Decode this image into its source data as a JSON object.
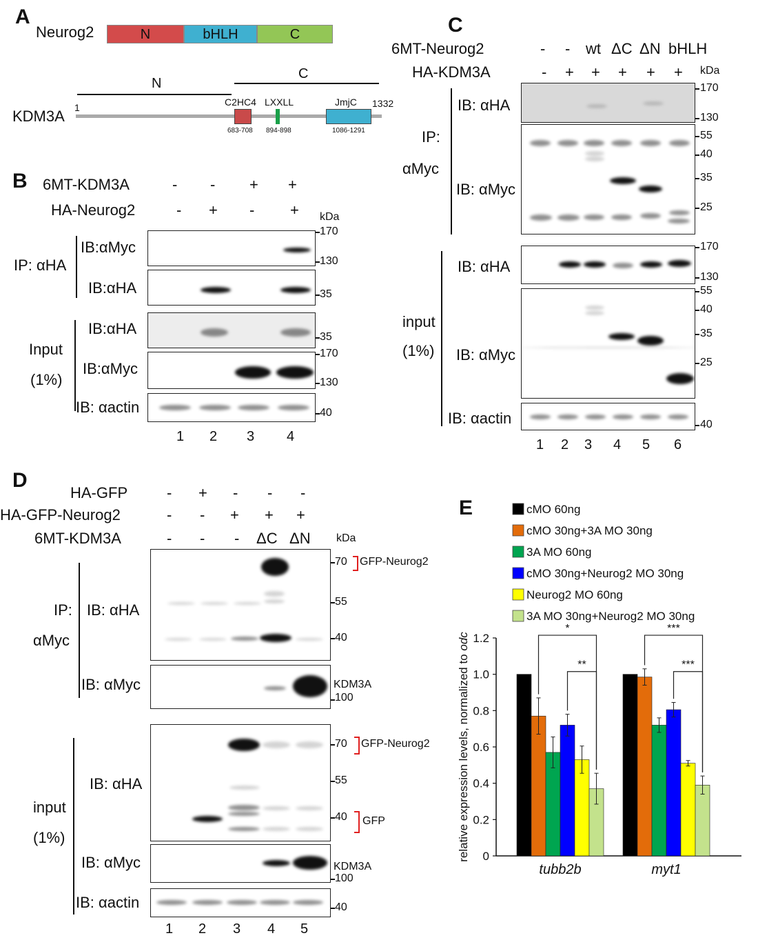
{
  "panels": {
    "A": "A",
    "B": "B",
    "C": "C",
    "D": "D",
    "E": "E"
  },
  "panelA": {
    "neurog2_name": "Neurog2",
    "neurog2_domains": [
      "N",
      "bHLH",
      "C"
    ],
    "kdm3a_name": "KDM3A",
    "start": "1",
    "end": "1332",
    "region_N": "N",
    "region_C": "C",
    "motifs": [
      {
        "name": "C2HC4",
        "range": "683-708"
      },
      {
        "name": "LXXLL",
        "range": "894-898"
      },
      {
        "name": "JmjC",
        "range": "1086-1291"
      }
    ]
  },
  "panelB": {
    "row1_label": "6MT-KDM3A",
    "row1_values": [
      "-",
      "-",
      "+",
      "+"
    ],
    "row2_label": "HA-Neurog2",
    "row2_values": [
      "-",
      "+",
      "-",
      "+"
    ],
    "kda": "kDa",
    "ip_label": "IP: αHA",
    "input_label1": "Input",
    "input_label2": "(1%)",
    "ib": [
      "IB:αMyc",
      "IB:αHA",
      "IB:αHA",
      "IB:αMyc",
      "IB: αactin"
    ],
    "markers": [
      "170",
      "130",
      "35",
      "35",
      "170",
      "130",
      "40"
    ],
    "lanes": [
      "1",
      "2",
      "3",
      "4"
    ]
  },
  "panelC": {
    "row1_label": "6MT-Neurog2",
    "row1_values": [
      "-",
      "-",
      "wt",
      "ΔC",
      "ΔN",
      "bHLH"
    ],
    "row2_label": "HA-KDM3A",
    "row2_values": [
      "-",
      "+",
      "+",
      "+",
      "+",
      "+"
    ],
    "kda": "kDa",
    "ip_label1": "IP:",
    "ip_label2": "αMyc",
    "input_label1": "input",
    "input_label2": "(1%)",
    "ib": [
      "IB: αHA",
      "IB: αMyc",
      "IB: αHA",
      "IB: αMyc",
      "IB: αactin"
    ],
    "markers_top": [
      "170",
      "130"
    ],
    "markers_myc": [
      "55",
      "40",
      "35",
      "25"
    ],
    "markers_input_ha": [
      "170",
      "130"
    ],
    "markers_input_myc": [
      "55",
      "40",
      "35",
      "25"
    ],
    "marker_actin": "40",
    "lanes": [
      "1",
      "2",
      "3",
      "4",
      "5",
      "6"
    ]
  },
  "panelD": {
    "row1_label": "HA-GFP",
    "row1_values": [
      "-",
      "+",
      "-",
      "-",
      "-"
    ],
    "row2_label": "HA-GFP-Neurog2",
    "row2_values": [
      "-",
      "-",
      "+",
      "+",
      "+"
    ],
    "row3_label": "6MT-KDM3A",
    "row3_values": [
      "-",
      "-",
      "-",
      "ΔC",
      "ΔN"
    ],
    "kda": "kDa",
    "ip_label1": "IP:",
    "ip_label2": "αMyc",
    "input_label1": "input",
    "input_label2": "(1%)",
    "ib": [
      "IB: αHA",
      "IB: αMyc",
      "IB: αHA",
      "IB: αMyc",
      "IB: αactin"
    ],
    "markers_ip": [
      "70",
      "55",
      "40"
    ],
    "annot_gfpneurog2": "GFP-Neurog2",
    "kdm3a": "KDM3A",
    "m100": "100",
    "markers_input": [
      "70",
      "55",
      "40"
    ],
    "annot_gfp": "GFP",
    "marker_actin": "40",
    "lanes": [
      "1",
      "2",
      "3",
      "4",
      "5"
    ]
  },
  "chart_data": {
    "type": "bar",
    "categories": [
      "tubb2b",
      "myt1"
    ],
    "series": [
      {
        "name": "cMO 60ng",
        "color": "#000000",
        "values": [
          1.0,
          1.0
        ],
        "errors": [
          0,
          0
        ]
      },
      {
        "name": "cMO 30ng+3A MO 30ng",
        "color": "#e36c0a",
        "values": [
          0.77,
          0.985
        ],
        "errors": [
          0.1,
          0.045
        ]
      },
      {
        "name": "3A MO 60ng",
        "color": "#00a550",
        "values": [
          0.57,
          0.72
        ],
        "errors": [
          0.085,
          0.04
        ]
      },
      {
        "name": "cMO 30ng+Neurog2 MO 30ng",
        "color": "#0000ff",
        "values": [
          0.72,
          0.805
        ],
        "errors": [
          0.06,
          0.04
        ]
      },
      {
        "name": "Neurog2 MO 60ng",
        "color": "#ffff00",
        "values": [
          0.53,
          0.51
        ],
        "errors": [
          0.075,
          0.015
        ]
      },
      {
        "name": "3A MO 30ng+Neurog2 MO 30ng",
        "color": "#c3e28c",
        "values": [
          0.37,
          0.39
        ],
        "errors": [
          0.085,
          0.05
        ]
      }
    ],
    "ylabel_main": "relative expression levels, normalized to ",
    "ylabel_italic": "odc",
    "ylim": [
      0,
      1.2
    ],
    "yticks": [
      "0",
      "0.2",
      "0.4",
      "0.6",
      "0.8",
      "1.0",
      "1.2"
    ],
    "significance": [
      {
        "category": "tubb2b",
        "from_series": 1,
        "to_series": 5,
        "label": "*"
      },
      {
        "category": "tubb2b",
        "from_series": 3,
        "to_series": 5,
        "label": "**"
      },
      {
        "category": "myt1",
        "from_series": 1,
        "to_series": 5,
        "label": "***"
      },
      {
        "category": "myt1",
        "from_series": 3,
        "to_series": 5,
        "label": "***"
      }
    ]
  }
}
